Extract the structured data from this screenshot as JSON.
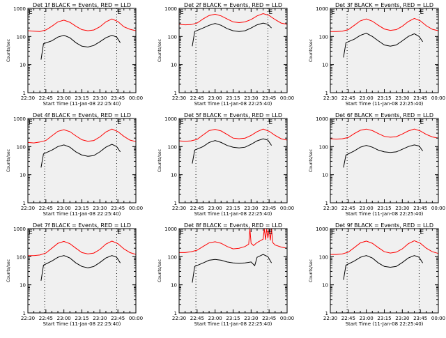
{
  "colors": {
    "events": "#000000",
    "lld": "#ff0000",
    "background": "#f0f0f0",
    "frame": "#000000"
  },
  "xtick_labels": [
    "22:30",
    "22:45",
    "23:00",
    "23:15",
    "23:30",
    "23:45",
    "00:00"
  ],
  "ytick_labels": [
    "1",
    "10",
    "100",
    "1000"
  ],
  "ylabel": "Counts/sec",
  "xlabel": "Start Time (11-Jan-08 22:25:40)",
  "edge_marker": "E",
  "chart_data": [
    {
      "type": "line",
      "title": "Det 1f BLACK = Events, RED = LLD",
      "ylim": [
        1,
        1000
      ],
      "y_scale": "log",
      "x_range": [
        "22:30",
        "00:00"
      ],
      "marker_lines": [
        "22:44",
        "23:44"
      ],
      "series": [
        {
          "name": "Events",
          "color": "#000000",
          "x": [
            "22:41",
            "22:43",
            "22:50",
            "22:55",
            "23:00",
            "23:05",
            "23:10",
            "23:15",
            "23:20",
            "23:25",
            "23:30",
            "23:35",
            "23:40",
            "23:44",
            "23:47"
          ],
          "y": [
            15,
            55,
            70,
            95,
            110,
            90,
            60,
            45,
            42,
            48,
            65,
            90,
            110,
            95,
            60
          ]
        },
        {
          "name": "LLD",
          "color": "#ff0000",
          "x": [
            "22:30",
            "22:35",
            "22:40",
            "22:45",
            "22:50",
            "22:55",
            "23:00",
            "23:05",
            "23:10",
            "23:15",
            "23:20",
            "23:25",
            "23:30",
            "23:35",
            "23:40",
            "23:45",
            "23:50",
            "23:55",
            "00:00"
          ],
          "y": [
            160,
            155,
            150,
            170,
            230,
            330,
            380,
            320,
            230,
            175,
            160,
            170,
            220,
            330,
            420,
            340,
            220,
            180,
            160
          ]
        }
      ]
    },
    {
      "type": "line",
      "title": "Det 2f BLACK = Events, RED = LLD",
      "ylim": [
        1,
        1000
      ],
      "y_scale": "log",
      "x_range": [
        "22:30",
        "00:00"
      ],
      "marker_lines": [
        "22:44",
        "23:44"
      ],
      "series": [
        {
          "name": "Events",
          "color": "#000000",
          "x": [
            "22:41",
            "22:43",
            "22:50",
            "22:55",
            "23:00",
            "23:05",
            "23:10",
            "23:15",
            "23:20",
            "23:25",
            "23:30",
            "23:35",
            "23:40",
            "23:44",
            "23:47"
          ],
          "y": [
            45,
            150,
            200,
            250,
            290,
            250,
            190,
            160,
            150,
            160,
            200,
            260,
            300,
            270,
            200
          ]
        },
        {
          "name": "LLD",
          "color": "#ff0000",
          "x": [
            "22:30",
            "22:35",
            "22:40",
            "22:45",
            "22:50",
            "22:55",
            "23:00",
            "23:05",
            "23:10",
            "23:15",
            "23:20",
            "23:25",
            "23:30",
            "23:35",
            "23:40",
            "23:45",
            "23:50",
            "23:55",
            "00:00"
          ],
          "y": [
            270,
            260,
            265,
            300,
            420,
            560,
            620,
            540,
            420,
            330,
            310,
            330,
            400,
            540,
            650,
            560,
            400,
            300,
            270
          ]
        }
      ]
    },
    {
      "type": "line",
      "title": "Det 3f BLACK = Events, RED = LLD",
      "ylim": [
        1,
        1000
      ],
      "y_scale": "log",
      "x_range": [
        "22:30",
        "00:00"
      ],
      "marker_lines": [
        "22:44",
        "23:44"
      ],
      "series": [
        {
          "name": "Events",
          "color": "#000000",
          "x": [
            "22:41",
            "22:43",
            "22:50",
            "22:55",
            "23:00",
            "23:05",
            "23:10",
            "23:15",
            "23:20",
            "23:25",
            "23:30",
            "23:35",
            "23:40",
            "23:44",
            "23:47"
          ],
          "y": [
            18,
            60,
            80,
            110,
            130,
            100,
            70,
            50,
            45,
            50,
            70,
            100,
            125,
            100,
            65
          ]
        },
        {
          "name": "LLD",
          "color": "#ff0000",
          "x": [
            "22:30",
            "22:35",
            "22:40",
            "22:45",
            "22:50",
            "22:55",
            "23:00",
            "23:05",
            "23:10",
            "23:15",
            "23:20",
            "23:25",
            "23:30",
            "23:35",
            "23:40",
            "23:45",
            "23:50",
            "23:55",
            "00:00"
          ],
          "y": [
            150,
            150,
            155,
            175,
            250,
            360,
            420,
            350,
            250,
            185,
            165,
            175,
            230,
            340,
            440,
            360,
            240,
            180,
            160
          ]
        }
      ]
    },
    {
      "type": "line",
      "title": "Det 4f BLACK = Events, RED = LLD",
      "ylim": [
        1,
        1000
      ],
      "y_scale": "log",
      "x_range": [
        "22:30",
        "00:00"
      ],
      "marker_lines": [
        "22:44",
        "23:44"
      ],
      "series": [
        {
          "name": "Events",
          "color": "#000000",
          "x": [
            "22:41",
            "22:43",
            "22:50",
            "22:55",
            "23:00",
            "23:05",
            "23:10",
            "23:15",
            "23:20",
            "23:25",
            "23:30",
            "23:35",
            "23:40",
            "23:44",
            "23:47"
          ],
          "y": [
            18,
            55,
            75,
            100,
            115,
            95,
            65,
            50,
            45,
            48,
            65,
            95,
            120,
            100,
            65
          ]
        },
        {
          "name": "LLD",
          "color": "#ff0000",
          "x": [
            "22:30",
            "22:35",
            "22:40",
            "22:45",
            "22:50",
            "22:55",
            "23:00",
            "23:05",
            "23:10",
            "23:15",
            "23:20",
            "23:25",
            "23:30",
            "23:35",
            "23:40",
            "23:45",
            "23:50",
            "23:55",
            "00:00"
          ],
          "y": [
            140,
            135,
            145,
            165,
            240,
            350,
            400,
            340,
            240,
            175,
            155,
            165,
            220,
            330,
            420,
            340,
            230,
            170,
            150
          ]
        }
      ]
    },
    {
      "type": "line",
      "title": "Det 5f BLACK = Events, RED = LLD",
      "ylim": [
        1,
        1000
      ],
      "y_scale": "log",
      "x_range": [
        "22:30",
        "00:00"
      ],
      "marker_lines": [
        "22:44",
        "23:44"
      ],
      "series": [
        {
          "name": "Events",
          "color": "#000000",
          "x": [
            "22:41",
            "22:43",
            "22:50",
            "22:55",
            "23:00",
            "23:05",
            "23:10",
            "23:15",
            "23:20",
            "23:25",
            "23:30",
            "23:35",
            "23:40",
            "23:44",
            "23:47"
          ],
          "y": [
            25,
            75,
            100,
            140,
            165,
            140,
            110,
            95,
            90,
            95,
            120,
            160,
            190,
            170,
            110
          ]
        },
        {
          "name": "LLD",
          "color": "#ff0000",
          "x": [
            "22:30",
            "22:35",
            "22:40",
            "22:45",
            "22:50",
            "22:55",
            "23:00",
            "23:05",
            "23:10",
            "23:15",
            "23:20",
            "23:25",
            "23:30",
            "23:35",
            "23:40",
            "23:45",
            "23:50",
            "23:55",
            "00:00"
          ],
          "y": [
            160,
            155,
            160,
            180,
            260,
            370,
            410,
            360,
            270,
            200,
            190,
            200,
            250,
            340,
            420,
            350,
            250,
            190,
            170
          ]
        }
      ]
    },
    {
      "type": "line",
      "title": "Det 6f BLACK = Events, RED = LLD",
      "ylim": [
        1,
        1000
      ],
      "y_scale": "log",
      "x_range": [
        "22:30",
        "00:00"
      ],
      "marker_lines": [
        "22:44",
        "23:44"
      ],
      "series": [
        {
          "name": "Events",
          "color": "#000000",
          "x": [
            "22:41",
            "22:43",
            "22:50",
            "22:55",
            "23:00",
            "23:05",
            "23:10",
            "23:15",
            "23:20",
            "23:25",
            "23:30",
            "23:35",
            "23:40",
            "23:44",
            "23:47"
          ],
          "y": [
            18,
            50,
            70,
            95,
            110,
            95,
            75,
            65,
            62,
            65,
            80,
            100,
            115,
            105,
            70
          ]
        },
        {
          "name": "LLD",
          "color": "#ff0000",
          "x": [
            "22:30",
            "22:35",
            "22:40",
            "22:45",
            "22:50",
            "22:55",
            "23:00",
            "23:05",
            "23:10",
            "23:15",
            "23:20",
            "23:25",
            "23:30",
            "23:35",
            "23:40",
            "23:45",
            "23:50",
            "23:55",
            "00:00"
          ],
          "y": [
            190,
            185,
            190,
            210,
            290,
            380,
            420,
            370,
            290,
            230,
            215,
            225,
            280,
            360,
            420,
            360,
            270,
            220,
            200
          ]
        }
      ]
    },
    {
      "type": "line",
      "title": "Det 7f BLACK = Events, RED = LLD",
      "ylim": [
        1,
        1000
      ],
      "y_scale": "log",
      "x_range": [
        "22:30",
        "00:00"
      ],
      "marker_lines": [
        "22:44",
        "23:44"
      ],
      "series": [
        {
          "name": "Events",
          "color": "#000000",
          "x": [
            "22:41",
            "22:43",
            "22:50",
            "22:55",
            "23:00",
            "23:05",
            "23:10",
            "23:15",
            "23:20",
            "23:25",
            "23:30",
            "23:35",
            "23:40",
            "23:44",
            "23:47"
          ],
          "y": [
            14,
            50,
            70,
            95,
            110,
            90,
            60,
            45,
            40,
            45,
            62,
            90,
            110,
            95,
            60
          ]
        },
        {
          "name": "LLD",
          "color": "#ff0000",
          "x": [
            "22:30",
            "22:35",
            "22:40",
            "22:45",
            "22:50",
            "22:55",
            "23:00",
            "23:05",
            "23:10",
            "23:15",
            "23:20",
            "23:25",
            "23:30",
            "23:35",
            "23:40",
            "23:45",
            "23:50",
            "23:55",
            "00:00"
          ],
          "y": [
            110,
            110,
            115,
            135,
            200,
            300,
            350,
            290,
            200,
            140,
            125,
            135,
            180,
            280,
            360,
            290,
            190,
            140,
            120
          ]
        }
      ]
    },
    {
      "type": "line",
      "title": "Det 8f BLACK = Events, RED = LLD",
      "ylim": [
        1,
        1000
      ],
      "y_scale": "log",
      "x_range": [
        "22:30",
        "00:00"
      ],
      "marker_lines": [
        "22:44",
        "23:44"
      ],
      "series": [
        {
          "name": "Events",
          "color": "#000000",
          "x": [
            "22:41",
            "22:43",
            "22:50",
            "22:55",
            "23:00",
            "23:05",
            "23:10",
            "23:15",
            "23:20",
            "23:25",
            "23:30",
            "23:33",
            "23:35",
            "23:40",
            "23:44",
            "23:47"
          ],
          "y": [
            12,
            45,
            60,
            75,
            80,
            75,
            65,
            60,
            58,
            60,
            65,
            48,
            95,
            120,
            100,
            60
          ]
        },
        {
          "name": "LLD",
          "color": "#ff0000",
          "x": [
            "22:30",
            "22:35",
            "22:40",
            "22:45",
            "22:50",
            "22:55",
            "23:00",
            "23:05",
            "23:10",
            "23:15",
            "23:20",
            "23:25",
            "23:28",
            "23:29",
            "23:30",
            "23:32",
            "23:35",
            "23:40",
            "23:41",
            "23:42",
            "23:43",
            "23:44",
            "23:45",
            "23:46",
            "23:47",
            "23:48",
            "23:50",
            "23:55",
            "00:00"
          ],
          "y": [
            140,
            140,
            150,
            170,
            230,
            310,
            340,
            300,
            230,
            190,
            200,
            230,
            280,
            1000,
            300,
            250,
            320,
            420,
            1000,
            400,
            1000,
            450,
            1000,
            380,
            1000,
            320,
            260,
            220,
            200
          ]
        }
      ]
    },
    {
      "type": "line",
      "title": "Det 9f BLACK = Events, RED = LLD",
      "ylim": [
        1,
        1000
      ],
      "y_scale": "log",
      "x_range": [
        "22:30",
        "00:00"
      ],
      "marker_lines": [
        "22:44",
        "23:44"
      ],
      "series": [
        {
          "name": "Events",
          "color": "#000000",
          "x": [
            "22:41",
            "22:43",
            "22:50",
            "22:55",
            "23:00",
            "23:05",
            "23:10",
            "23:15",
            "23:20",
            "23:25",
            "23:30",
            "23:35",
            "23:40",
            "23:44",
            "23:47"
          ],
          "y": [
            15,
            50,
            70,
            95,
            110,
            90,
            60,
            45,
            42,
            45,
            62,
            90,
            110,
            95,
            60
          ]
        },
        {
          "name": "LLD",
          "color": "#ff0000",
          "x": [
            "22:30",
            "22:35",
            "22:40",
            "22:45",
            "22:50",
            "22:55",
            "23:00",
            "23:05",
            "23:10",
            "23:15",
            "23:20",
            "23:25",
            "23:30",
            "23:35",
            "23:40",
            "23:45",
            "23:50",
            "23:55",
            "00:00"
          ],
          "y": [
            120,
            120,
            125,
            145,
            210,
            310,
            360,
            300,
            210,
            150,
            135,
            145,
            190,
            290,
            370,
            300,
            200,
            150,
            130
          ]
        }
      ]
    }
  ]
}
